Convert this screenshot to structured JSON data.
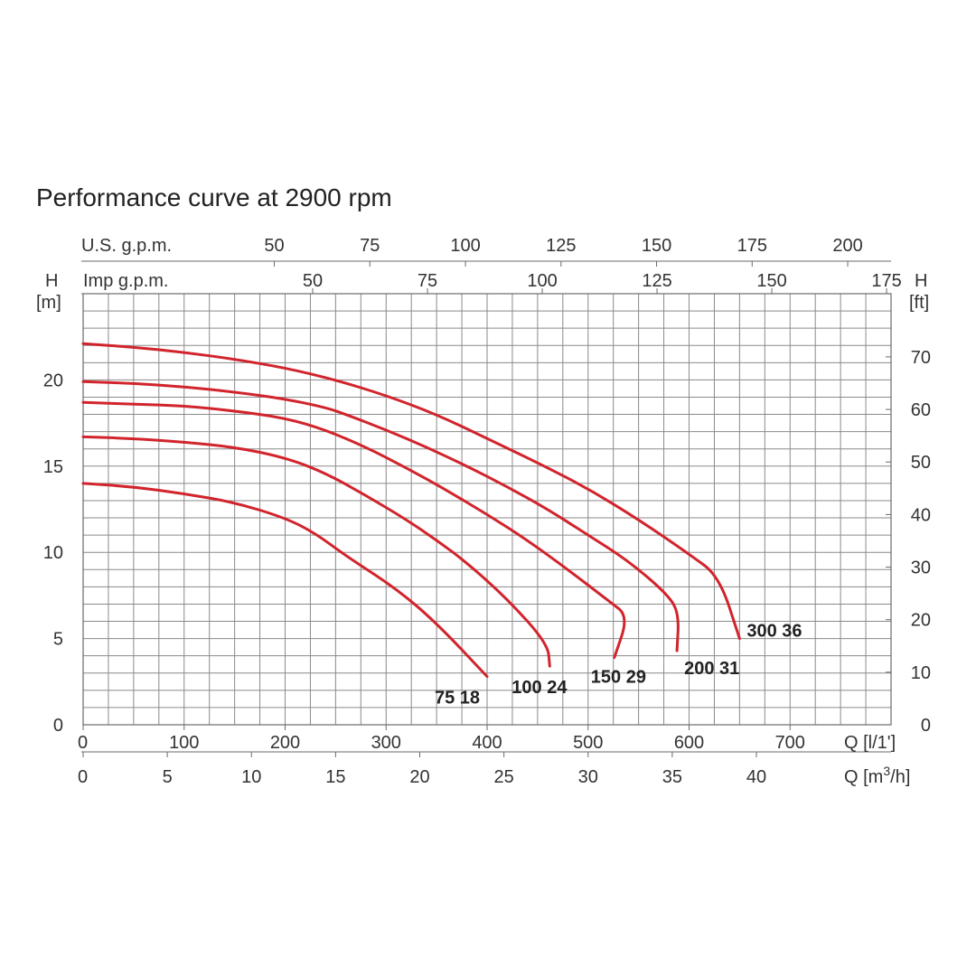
{
  "chart_data": {
    "type": "line",
    "title": "Performance curve at 2900 rpm",
    "x_axis_bottom_primary": {
      "label": "Q [l/1']",
      "range": [
        0,
        800
      ],
      "ticks": [
        "0",
        "100",
        "200",
        "300",
        "400",
        "500",
        "600",
        "700"
      ]
    },
    "x_axis_bottom_secondary": {
      "label": "Q [m³/h]",
      "label_base": "Q [m",
      "label_sup": "3",
      "label_end": "/h]",
      "ticks": [
        {
          "value": 0,
          "label": "0"
        },
        {
          "value": 5,
          "label": "5"
        },
        {
          "value": 10,
          "label": "10"
        },
        {
          "value": 15,
          "label": "15"
        },
        {
          "value": 20,
          "label": "20"
        },
        {
          "value": 25,
          "label": "25"
        },
        {
          "value": 30,
          "label": "30"
        },
        {
          "value": 35,
          "label": "35"
        },
        {
          "value": 40,
          "label": "40"
        }
      ]
    },
    "x_axis_top_us": {
      "label": "U.S. g.p.m.",
      "ticks": [
        {
          "value": 50,
          "label": "50"
        },
        {
          "value": 75,
          "label": "75"
        },
        {
          "value": 100,
          "label": "100"
        },
        {
          "value": 125,
          "label": "125"
        },
        {
          "value": 150,
          "label": "150"
        },
        {
          "value": 175,
          "label": "175"
        },
        {
          "value": 200,
          "label": "200"
        }
      ]
    },
    "x_axis_top_imp": {
      "label": "Imp g.p.m.",
      "ticks": [
        {
          "value": 50,
          "label": "50"
        },
        {
          "value": 75,
          "label": "75"
        },
        {
          "value": 100,
          "label": "100"
        },
        {
          "value": 125,
          "label": "125"
        },
        {
          "value": 150,
          "label": "150"
        },
        {
          "value": 175,
          "label": "175"
        }
      ]
    },
    "y_axis_left": {
      "label_line1": "H",
      "label_line2": "[m]",
      "range": [
        0,
        25
      ],
      "ticks": [
        "0",
        "5",
        "10",
        "15",
        "20"
      ]
    },
    "y_axis_right": {
      "label_line1": "H",
      "label_line2": "[ft]",
      "ticks": [
        {
          "value": 0,
          "label": "0"
        },
        {
          "value": 10,
          "label": "10"
        },
        {
          "value": 20,
          "label": "20"
        },
        {
          "value": 30,
          "label": "30"
        },
        {
          "value": 40,
          "label": "40"
        },
        {
          "value": 50,
          "label": "50"
        },
        {
          "value": 60,
          "label": "60"
        },
        {
          "value": 70,
          "label": "70"
        }
      ]
    },
    "grid": true,
    "series": [
      {
        "name": "75 18",
        "points": [
          [
            0,
            14.0
          ],
          [
            50,
            13.8
          ],
          [
            100,
            13.4
          ],
          [
            150,
            12.9
          ],
          [
            200,
            12.0
          ],
          [
            230,
            11.1
          ],
          [
            260,
            9.8
          ],
          [
            310,
            7.9
          ],
          [
            350,
            5.9
          ],
          [
            400,
            2.8
          ]
        ]
      },
      {
        "name": "100 24",
        "points": [
          [
            0,
            16.7
          ],
          [
            50,
            16.6
          ],
          [
            100,
            16.4
          ],
          [
            150,
            16.1
          ],
          [
            200,
            15.5
          ],
          [
            240,
            14.6
          ],
          [
            280,
            13.3
          ],
          [
            320,
            11.9
          ],
          [
            350,
            10.7
          ],
          [
            380,
            9.4
          ],
          [
            420,
            7.3
          ],
          [
            460,
            4.7
          ],
          [
            462,
            3.4
          ]
        ]
      },
      {
        "name": "150 29",
        "points": [
          [
            0,
            18.7
          ],
          [
            50,
            18.6
          ],
          [
            100,
            18.5
          ],
          [
            150,
            18.2
          ],
          [
            200,
            17.8
          ],
          [
            240,
            17.1
          ],
          [
            280,
            16.1
          ],
          [
            320,
            14.9
          ],
          [
            360,
            13.6
          ],
          [
            400,
            12.2
          ],
          [
            440,
            10.7
          ],
          [
            480,
            9.0
          ],
          [
            520,
            7.2
          ],
          [
            540,
            6.3
          ],
          [
            526,
            3.9
          ]
        ]
      },
      {
        "name": "200 31",
        "points": [
          [
            0,
            19.9
          ],
          [
            50,
            19.8
          ],
          [
            100,
            19.6
          ],
          [
            150,
            19.3
          ],
          [
            200,
            18.9
          ],
          [
            240,
            18.4
          ],
          [
            260,
            18.0
          ],
          [
            300,
            17.1
          ],
          [
            340,
            16.1
          ],
          [
            380,
            15.0
          ],
          [
            420,
            13.8
          ],
          [
            460,
            12.5
          ],
          [
            500,
            11.0
          ],
          [
            540,
            9.5
          ],
          [
            580,
            7.5
          ],
          [
            590,
            6.4
          ],
          [
            588,
            4.3
          ]
        ]
      },
      {
        "name": "300 36",
        "points": [
          [
            0,
            22.1
          ],
          [
            50,
            21.9
          ],
          [
            100,
            21.6
          ],
          [
            150,
            21.2
          ],
          [
            200,
            20.7
          ],
          [
            250,
            20.0
          ],
          [
            300,
            19.1
          ],
          [
            350,
            18.0
          ],
          [
            400,
            16.6
          ],
          [
            450,
            15.2
          ],
          [
            500,
            13.7
          ],
          [
            550,
            11.9
          ],
          [
            600,
            9.9
          ],
          [
            630,
            8.6
          ],
          [
            650,
            5.0
          ]
        ]
      }
    ]
  }
}
